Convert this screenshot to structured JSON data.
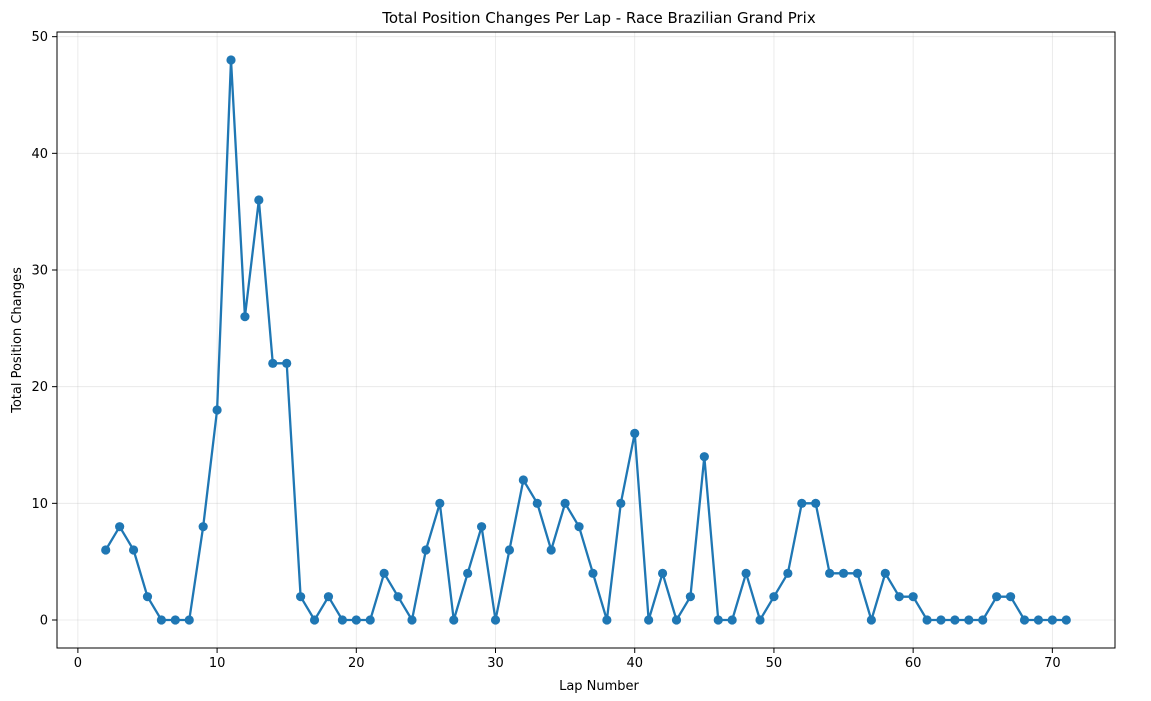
{
  "chart_data": {
    "type": "line",
    "title": "Total Position Changes Per Lap - Race Brazilian Grand Prix",
    "xlabel": "Lap Number",
    "ylabel": "Total Position Changes",
    "xlim": [
      -1.5,
      74.5
    ],
    "ylim": [
      -2.4,
      50.4
    ],
    "xticks": [
      0,
      10,
      20,
      30,
      40,
      50,
      60,
      70
    ],
    "yticks": [
      0,
      10,
      20,
      30,
      40,
      50
    ],
    "grid": true,
    "series": [
      {
        "name": "Total Position Changes",
        "color": "#1f77b4",
        "x": [
          2,
          3,
          4,
          5,
          6,
          7,
          8,
          9,
          10,
          11,
          12,
          13,
          14,
          15,
          16,
          17,
          18,
          19,
          20,
          21,
          22,
          23,
          24,
          25,
          26,
          27,
          28,
          29,
          30,
          31,
          32,
          33,
          34,
          35,
          36,
          37,
          38,
          39,
          40,
          41,
          42,
          43,
          44,
          45,
          46,
          47,
          48,
          49,
          50,
          51,
          52,
          53,
          54,
          55,
          56,
          57,
          58,
          59,
          60,
          61,
          62,
          63,
          64,
          65,
          66,
          67,
          68,
          69,
          70,
          71
        ],
        "y": [
          6,
          8,
          6,
          2,
          0,
          0,
          0,
          8,
          18,
          48,
          26,
          36,
          22,
          22,
          2,
          0,
          2,
          0,
          0,
          0,
          4,
          2,
          0,
          6,
          10,
          0,
          4,
          8,
          0,
          6,
          12,
          10,
          6,
          10,
          8,
          4,
          0,
          10,
          16,
          0,
          4,
          0,
          2,
          14,
          0,
          0,
          4,
          0,
          2,
          4,
          10,
          10,
          4,
          4,
          4,
          0,
          4,
          2,
          2,
          0,
          0,
          0,
          0,
          0,
          2,
          2,
          0,
          0,
          0,
          0
        ]
      }
    ]
  }
}
